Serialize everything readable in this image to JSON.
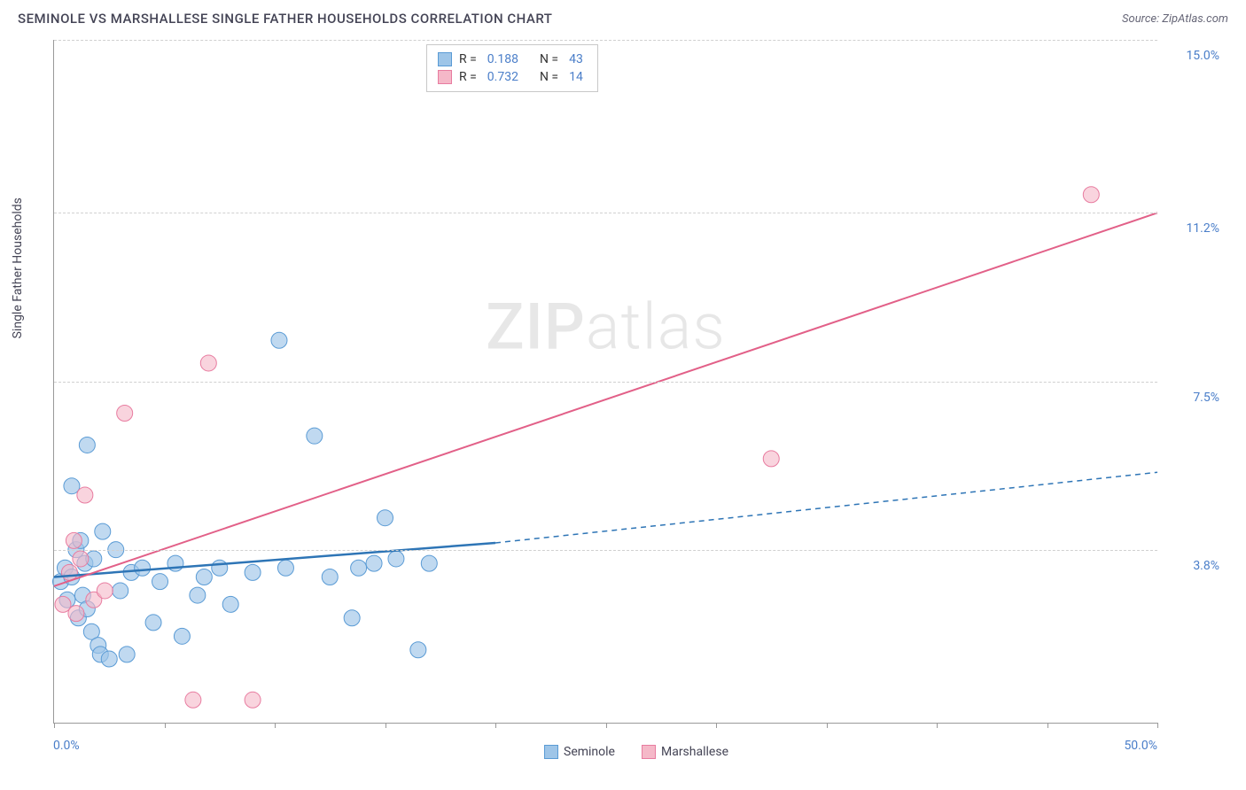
{
  "header": {
    "title": "SEMINOLE VS MARSHALLESE SINGLE FATHER HOUSEHOLDS CORRELATION CHART",
    "source": "Source: ZipAtlas.com"
  },
  "chart": {
    "type": "scatter",
    "y_axis_label": "Single Father Households",
    "xlim": [
      0,
      50
    ],
    "ylim": [
      0,
      15
    ],
    "x_ticks": [
      0,
      5,
      10,
      15,
      20,
      25,
      30,
      35,
      40,
      45,
      50
    ],
    "x_tick_labels": {
      "min": "0.0%",
      "max": "50.0%"
    },
    "y_gridlines": [
      3.8,
      7.5,
      11.2,
      15.0
    ],
    "y_tick_labels": [
      "3.8%",
      "7.5%",
      "11.2%",
      "15.0%"
    ],
    "grid_color": "#d0d0d0",
    "axis_color": "#999999",
    "label_color": "#4a7ec9",
    "background_color": "#ffffff",
    "series": [
      {
        "name": "Seminole",
        "color_fill": "#9ec5e8",
        "color_stroke": "#5a9bd5",
        "marker_radius": 9,
        "marker_opacity": 0.65,
        "points": [
          [
            0.3,
            3.1
          ],
          [
            0.5,
            3.4
          ],
          [
            0.6,
            2.7
          ],
          [
            0.8,
            3.2
          ],
          [
            0.8,
            5.2
          ],
          [
            1.0,
            3.8
          ],
          [
            1.1,
            2.3
          ],
          [
            1.2,
            4.0
          ],
          [
            1.3,
            2.8
          ],
          [
            1.4,
            3.5
          ],
          [
            1.5,
            2.5
          ],
          [
            1.5,
            6.1
          ],
          [
            1.7,
            2.0
          ],
          [
            1.8,
            3.6
          ],
          [
            2.0,
            1.7
          ],
          [
            2.1,
            1.5
          ],
          [
            2.2,
            4.2
          ],
          [
            2.5,
            1.4
          ],
          [
            2.8,
            3.8
          ],
          [
            3.0,
            2.9
          ],
          [
            3.3,
            1.5
          ],
          [
            3.5,
            3.3
          ],
          [
            4.0,
            3.4
          ],
          [
            4.5,
            2.2
          ],
          [
            4.8,
            3.1
          ],
          [
            5.5,
            3.5
          ],
          [
            5.8,
            1.9
          ],
          [
            6.5,
            2.8
          ],
          [
            6.8,
            3.2
          ],
          [
            7.5,
            3.4
          ],
          [
            8.0,
            2.6
          ],
          [
            9.0,
            3.3
          ],
          [
            10.2,
            8.4
          ],
          [
            10.5,
            3.4
          ],
          [
            11.8,
            6.3
          ],
          [
            12.5,
            3.2
          ],
          [
            13.5,
            2.3
          ],
          [
            13.8,
            3.4
          ],
          [
            14.5,
            3.5
          ],
          [
            15.0,
            4.5
          ],
          [
            15.5,
            3.6
          ],
          [
            16.5,
            1.6
          ],
          [
            17.0,
            3.5
          ]
        ],
        "regression": {
          "x1": 0,
          "y1": 3.2,
          "x2": 20,
          "y2": 3.95,
          "x2_dash": 50,
          "y2_dash": 5.5
        },
        "line_color": "#2e75b6",
        "line_width": 2.5
      },
      {
        "name": "Marshallese",
        "color_fill": "#f5b8c8",
        "color_stroke": "#e87ca0",
        "marker_radius": 9,
        "marker_opacity": 0.6,
        "points": [
          [
            0.4,
            2.6
          ],
          [
            0.7,
            3.3
          ],
          [
            0.9,
            4.0
          ],
          [
            1.0,
            2.4
          ],
          [
            1.2,
            3.6
          ],
          [
            1.4,
            5.0
          ],
          [
            1.8,
            2.7
          ],
          [
            2.3,
            2.9
          ],
          [
            3.2,
            6.8
          ],
          [
            6.3,
            0.5
          ],
          [
            7.0,
            7.9
          ],
          [
            9.0,
            0.5
          ],
          [
            32.5,
            5.8
          ],
          [
            47.0,
            11.6
          ]
        ],
        "regression": {
          "x1": 0,
          "y1": 3.0,
          "x2": 50,
          "y2": 11.2
        },
        "line_color": "#e26088",
        "line_width": 2
      }
    ],
    "stats_legend": [
      {
        "swatch_fill": "#9ec5e8",
        "swatch_stroke": "#5a9bd5",
        "r_label": "R =",
        "r": "0.188",
        "n_label": "N =",
        "n": "43"
      },
      {
        "swatch_fill": "#f5b8c8",
        "swatch_stroke": "#e87ca0",
        "r_label": "R =",
        "r": "0.732",
        "n_label": "N =",
        "n": "14"
      }
    ],
    "bottom_legend": [
      {
        "swatch_fill": "#9ec5e8",
        "swatch_stroke": "#5a9bd5",
        "label": "Seminole"
      },
      {
        "swatch_fill": "#f5b8c8",
        "swatch_stroke": "#e87ca0",
        "label": "Marshallese"
      }
    ],
    "watermark": {
      "bold": "ZIP",
      "light": "atlas"
    }
  }
}
